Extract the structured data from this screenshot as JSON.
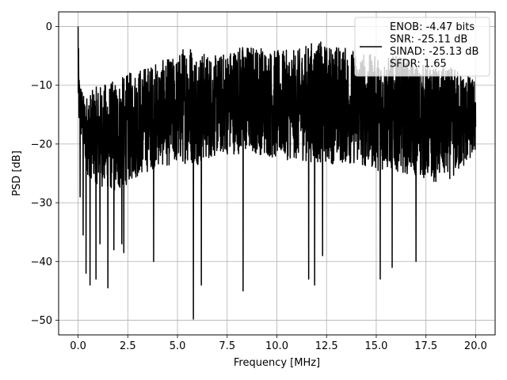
{
  "chart_data": {
    "type": "line",
    "title": "",
    "xlabel": "Frequency [MHz]",
    "ylabel": "PSD [dB]",
    "xlim": [
      -0.98,
      20.98
    ],
    "ylim": [
      -52.5,
      2.5
    ],
    "xticks": [
      0.0,
      2.5,
      5.0,
      7.5,
      10.0,
      12.5,
      15.0,
      17.5,
      20.0
    ],
    "xtick_labels": [
      "0.0",
      "2.5",
      "5.0",
      "7.5",
      "10.0",
      "12.5",
      "15.0",
      "17.5",
      "20.0"
    ],
    "yticks": [
      0,
      -10,
      -20,
      -30,
      -40,
      -50
    ],
    "ytick_labels": [
      "0",
      "−10",
      "−20",
      "−30",
      "−40",
      "−50"
    ],
    "grid": true,
    "legend_position": "top-right",
    "series": [
      {
        "name": "ENOB: -4.47 bits\nSNR: -25.11 dB\nSINAD: -25.13 dB\nSFDR: 1.65",
        "color": "#000000",
        "x_range": [
          0.0,
          20.0
        ],
        "envelope_top": [
          [
            0.0,
            0.0
          ],
          [
            0.05,
            -8
          ],
          [
            0.3,
            -12
          ],
          [
            1.0,
            -10
          ],
          [
            2.0,
            -9
          ],
          [
            2.5,
            -8
          ],
          [
            3.0,
            -7
          ],
          [
            4.0,
            -6
          ],
          [
            5.0,
            -5
          ],
          [
            5.5,
            -2
          ],
          [
            6.0,
            -4
          ],
          [
            7.0,
            -5
          ],
          [
            7.5,
            -4
          ],
          [
            8.0,
            -3
          ],
          [
            9.0,
            -3
          ],
          [
            10.0,
            -4
          ],
          [
            11.0,
            -4
          ],
          [
            12.0,
            -2
          ],
          [
            12.5,
            -3
          ],
          [
            13.0,
            -3
          ],
          [
            14.0,
            -4
          ],
          [
            15.0,
            -5
          ],
          [
            16.0,
            -5
          ],
          [
            17.0,
            -6
          ],
          [
            18.0,
            -7
          ],
          [
            19.0,
            -7
          ],
          [
            20.0,
            -9
          ]
        ],
        "envelope_bottom": [
          [
            0.0,
            -18
          ],
          [
            0.5,
            -28
          ],
          [
            1.0,
            -30
          ],
          [
            2.0,
            -32
          ],
          [
            2.5,
            -30
          ],
          [
            3.0,
            -29
          ],
          [
            4.0,
            -27
          ],
          [
            5.0,
            -27
          ],
          [
            6.0,
            -27
          ],
          [
            7.0,
            -25
          ],
          [
            8.0,
            -25
          ],
          [
            9.0,
            -25
          ],
          [
            10.0,
            -26
          ],
          [
            11.0,
            -26
          ],
          [
            12.0,
            -27
          ],
          [
            13.0,
            -27
          ],
          [
            14.0,
            -27
          ],
          [
            15.0,
            -28
          ],
          [
            16.0,
            -28
          ],
          [
            17.0,
            -29
          ],
          [
            18.0,
            -30
          ],
          [
            19.0,
            -29
          ],
          [
            20.0,
            -24
          ]
        ],
        "notable_dips": [
          [
            0.1,
            -29
          ],
          [
            0.25,
            -35.5
          ],
          [
            0.4,
            -42
          ],
          [
            0.6,
            -44
          ],
          [
            0.9,
            -43
          ],
          [
            1.1,
            -37
          ],
          [
            1.5,
            -44.5
          ],
          [
            1.8,
            -38
          ],
          [
            2.2,
            -37
          ],
          [
            2.3,
            -38.5
          ],
          [
            3.8,
            -40
          ],
          [
            5.8,
            -49.8
          ],
          [
            6.2,
            -44
          ],
          [
            8.3,
            -45
          ],
          [
            11.6,
            -43
          ],
          [
            11.9,
            -44
          ],
          [
            12.3,
            -39
          ],
          [
            15.2,
            -43
          ],
          [
            15.8,
            -41
          ],
          [
            17.0,
            -40
          ]
        ]
      }
    ]
  }
}
